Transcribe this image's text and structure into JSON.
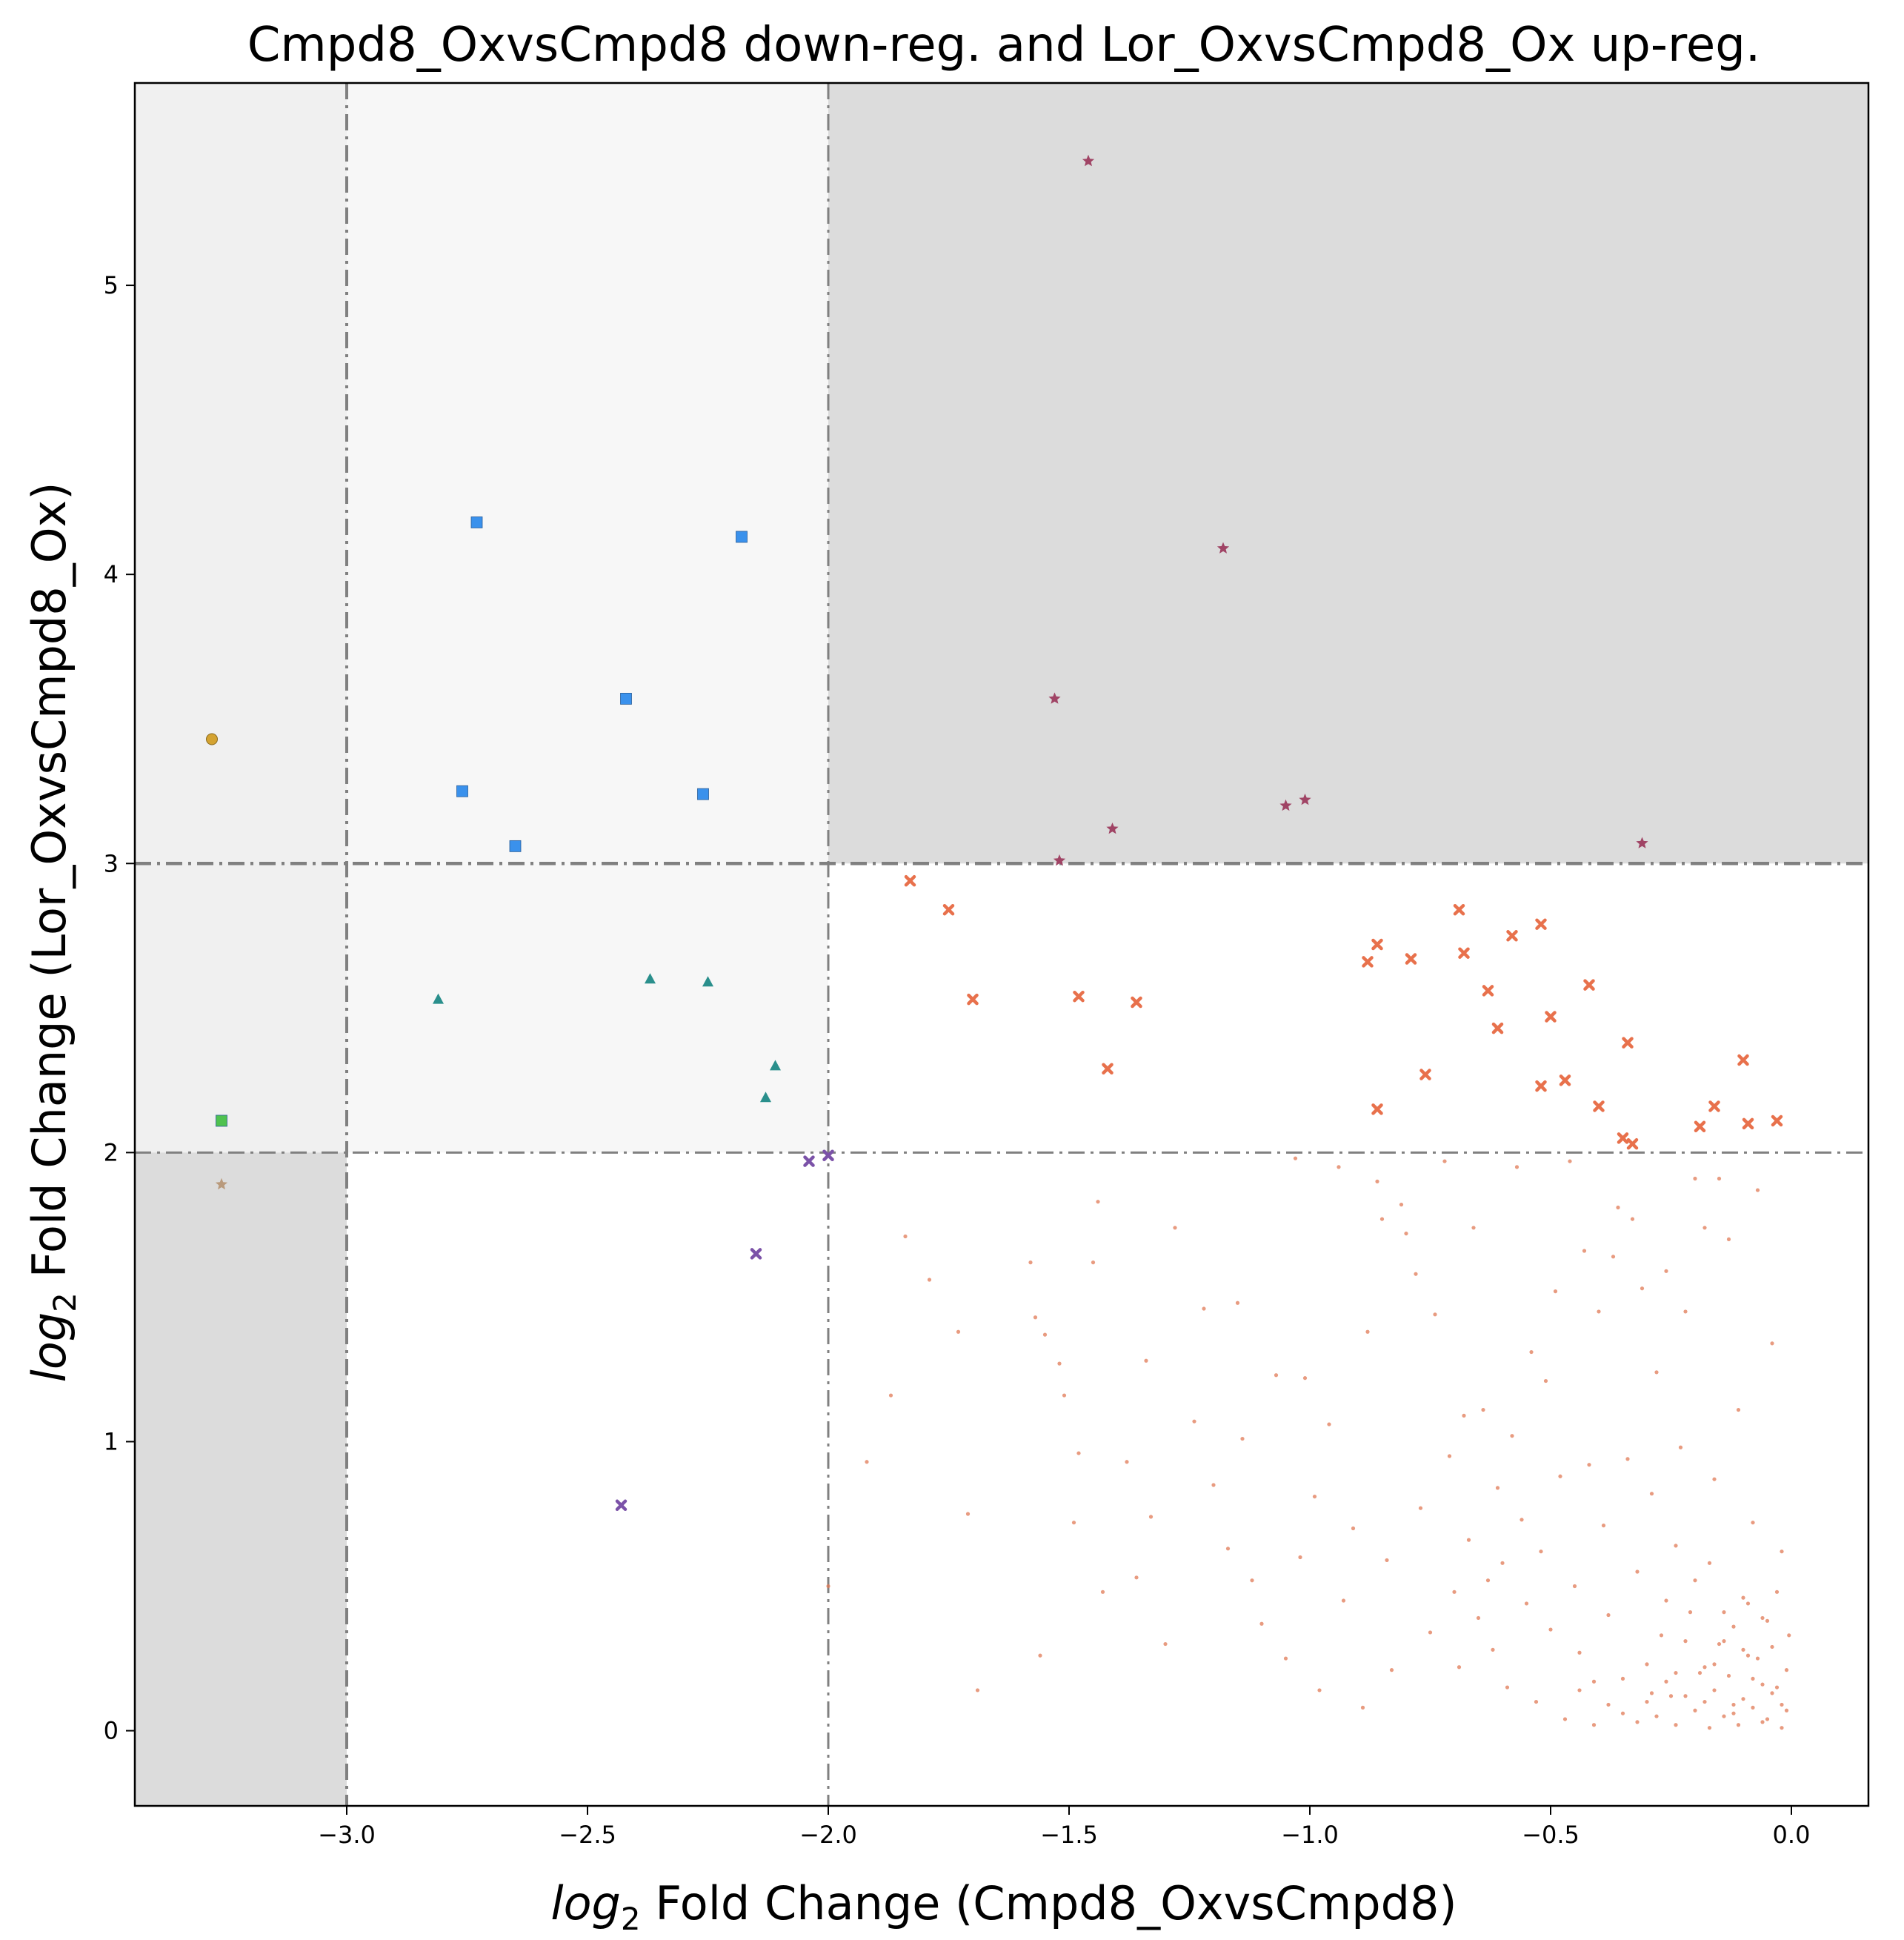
{
  "chart_data": {
    "type": "scatter",
    "title": "Cmpd8_OxvsCmpd8 down-reg. and Lor_OxvsCmpd8_Ox up-reg.",
    "xlabel_italic": "log",
    "xlabel_sub": "2",
    "xlabel_rest": " Fold Change (Cmpd8_OxvsCmpd8)",
    "ylabel_italic": "log",
    "ylabel_sub": "2",
    "ylabel_rest": " Fold Change (Lor_OxvsCmpd8_Ox)",
    "xlim": [
      -3.44,
      0.16
    ],
    "ylim": [
      -0.26,
      5.7
    ],
    "x_ticks": [
      -3.0,
      -2.5,
      -2.0,
      -1.5,
      -1.0,
      -0.5,
      0.0
    ],
    "x_tick_labels": [
      "−3.0",
      "−2.5",
      "−2.0",
      "−1.5",
      "−1.0",
      "−0.5",
      "0.0"
    ],
    "y_ticks": [
      0,
      1,
      2,
      3,
      4,
      5
    ],
    "y_tick_labels": [
      "0",
      "1",
      "2",
      "3",
      "4",
      "5"
    ],
    "grid": false,
    "legend": "none",
    "thresholds": {
      "x_dashdot": [
        -3.0,
        -2.0
      ],
      "y_dashdot": [
        2.0,
        3.0
      ]
    },
    "shaded_regions": [
      {
        "x": [
          -3.44,
          -3.0
        ],
        "y": [
          2.0,
          5.7
        ],
        "color": "#f0f0f0"
      },
      {
        "x": [
          -3.0,
          -2.0
        ],
        "y": [
          3.0,
          5.7
        ],
        "color": "#f7f7f7"
      },
      {
        "x": [
          -3.0,
          -2.0
        ],
        "y": [
          2.0,
          3.0
        ],
        "color": "#f7f7f7"
      },
      {
        "x": [
          -3.44,
          -3.0
        ],
        "y": [
          -0.26,
          2.0
        ],
        "color": "#dcdcdc"
      },
      {
        "x": [
          -2.0,
          0.16
        ],
        "y": [
          3.0,
          5.7
        ],
        "color": "#dcdcdc"
      }
    ],
    "series": [
      {
        "marker": "circle",
        "color": "#d4a331",
        "points": [
          [
            -3.28,
            3.43
          ]
        ]
      },
      {
        "marker": "square",
        "color": "#4fc24f",
        "points": [
          [
            -3.26,
            2.11
          ]
        ]
      },
      {
        "marker": "star",
        "color": "#b99a7c",
        "points": [
          [
            -3.26,
            1.89
          ]
        ]
      },
      {
        "marker": "square",
        "color": "#3a91ec",
        "points": [
          [
            -2.73,
            4.18
          ],
          [
            -2.18,
            4.13
          ],
          [
            -2.42,
            3.57
          ],
          [
            -2.76,
            3.25
          ],
          [
            -2.26,
            3.24
          ],
          [
            -2.65,
            3.06
          ]
        ]
      },
      {
        "marker": "triangle",
        "color": "#2a8f8c",
        "points": [
          [
            -2.81,
            2.53
          ],
          [
            -2.37,
            2.6
          ],
          [
            -2.25,
            2.59
          ],
          [
            -2.11,
            2.3
          ],
          [
            -2.13,
            2.19
          ]
        ]
      },
      {
        "marker": "x",
        "color": "#7b52a8",
        "points": [
          [
            -2.04,
            1.97
          ],
          [
            -2.0,
            1.99
          ],
          [
            -2.15,
            1.65
          ],
          [
            -2.43,
            0.78
          ]
        ]
      },
      {
        "marker": "star",
        "color": "#a04465",
        "points": [
          [
            -1.46,
            5.43
          ],
          [
            -1.18,
            4.09
          ],
          [
            -1.53,
            3.57
          ],
          [
            -1.05,
            3.2
          ],
          [
            -1.01,
            3.22
          ],
          [
            -1.41,
            3.12
          ],
          [
            -1.52,
            3.01
          ],
          [
            -0.31,
            3.07
          ]
        ]
      },
      {
        "marker": "x",
        "color": "#e8714c",
        "points": [
          [
            -1.83,
            2.94
          ],
          [
            -1.75,
            2.84
          ],
          [
            -1.7,
            2.53
          ],
          [
            -1.48,
            2.54
          ],
          [
            -1.36,
            2.52
          ],
          [
            -1.42,
            2.29
          ],
          [
            -0.88,
            2.66
          ],
          [
            -0.86,
            2.72
          ],
          [
            -0.79,
            2.67
          ],
          [
            -0.86,
            2.15
          ],
          [
            -0.76,
            2.27
          ],
          [
            -0.69,
            2.84
          ],
          [
            -0.68,
            2.69
          ],
          [
            -0.63,
            2.56
          ],
          [
            -0.61,
            2.43
          ],
          [
            -0.58,
            2.75
          ],
          [
            -0.52,
            2.79
          ],
          [
            -0.5,
            2.47
          ],
          [
            -0.52,
            2.23
          ],
          [
            -0.47,
            2.25
          ],
          [
            -0.42,
            2.58
          ],
          [
            -0.4,
            2.16
          ],
          [
            -0.35,
            2.05
          ],
          [
            -0.34,
            2.38
          ],
          [
            -0.33,
            2.03
          ],
          [
            -0.19,
            2.09
          ],
          [
            -0.16,
            2.16
          ],
          [
            -0.1,
            2.32
          ],
          [
            -0.09,
            2.1
          ],
          [
            -0.03,
            2.11
          ]
        ]
      },
      {
        "marker": "dot",
        "color": "#e07a55",
        "points": [
          [
            -1.84,
            1.71
          ],
          [
            -1.79,
            1.56
          ],
          [
            -1.87,
            1.16
          ],
          [
            -1.92,
            0.93
          ],
          [
            -1.73,
            1.38
          ],
          [
            -1.71,
            0.75
          ],
          [
            -1.69,
            0.14
          ],
          [
            -2.0,
            0.5
          ],
          [
            -1.58,
            1.62
          ],
          [
            -1.57,
            1.43
          ],
          [
            -1.55,
            1.37
          ],
          [
            -1.52,
            1.27
          ],
          [
            -1.51,
            1.16
          ],
          [
            -1.48,
            0.96
          ],
          [
            -1.49,
            0.72
          ],
          [
            -1.45,
            1.62
          ],
          [
            -1.44,
            1.83
          ],
          [
            -1.43,
            0.48
          ],
          [
            -1.56,
            0.26
          ],
          [
            -1.38,
            0.93
          ],
          [
            -1.36,
            0.53
          ],
          [
            -1.34,
            1.28
          ],
          [
            -1.33,
            0.74
          ],
          [
            -1.3,
            0.3
          ],
          [
            -1.28,
            1.74
          ],
          [
            -1.24,
            1.07
          ],
          [
            -1.22,
            1.46
          ],
          [
            -1.2,
            0.85
          ],
          [
            -1.17,
            0.63
          ],
          [
            -1.15,
            1.48
          ],
          [
            -1.14,
            1.01
          ],
          [
            -1.12,
            0.52
          ],
          [
            -1.1,
            0.37
          ],
          [
            -1.07,
            1.23
          ],
          [
            -1.05,
            0.25
          ],
          [
            -1.03,
            1.98
          ],
          [
            -1.02,
            0.6
          ],
          [
            -1.01,
            1.22
          ],
          [
            -0.99,
            0.81
          ],
          [
            -0.98,
            0.14
          ],
          [
            -0.96,
            1.06
          ],
          [
            -0.94,
            1.95
          ],
          [
            -0.93,
            0.45
          ],
          [
            -0.91,
            0.7
          ],
          [
            -0.89,
            0.08
          ],
          [
            -0.88,
            1.38
          ],
          [
            -0.86,
            1.9
          ],
          [
            -0.85,
            1.77
          ],
          [
            -0.84,
            0.59
          ],
          [
            -0.83,
            0.21
          ],
          [
            -0.81,
            1.82
          ],
          [
            -0.8,
            1.72
          ],
          [
            -0.78,
            1.58
          ],
          [
            -0.77,
            0.77
          ],
          [
            -0.75,
            0.34
          ],
          [
            -0.74,
            1.44
          ],
          [
            -0.72,
            1.97
          ],
          [
            -0.71,
            0.95
          ],
          [
            -0.7,
            0.48
          ],
          [
            -0.69,
            0.22
          ],
          [
            -0.68,
            1.09
          ],
          [
            -0.67,
            0.66
          ],
          [
            -0.66,
            1.74
          ],
          [
            -0.65,
            0.39
          ],
          [
            -0.64,
            1.11
          ],
          [
            -0.63,
            0.52
          ],
          [
            -0.62,
            0.28
          ],
          [
            -0.61,
            0.84
          ],
          [
            -0.6,
            0.58
          ],
          [
            -0.59,
            0.15
          ],
          [
            -0.58,
            1.02
          ],
          [
            -0.57,
            1.95
          ],
          [
            -0.56,
            0.73
          ],
          [
            -0.55,
            0.44
          ],
          [
            -0.54,
            1.31
          ],
          [
            -0.53,
            0.1
          ],
          [
            -0.52,
            0.62
          ],
          [
            -0.51,
            1.21
          ],
          [
            -0.5,
            0.35
          ],
          [
            -0.49,
            1.52
          ],
          [
            -0.48,
            0.88
          ],
          [
            -0.47,
            0.04
          ],
          [
            -0.46,
            1.97
          ],
          [
            -0.45,
            0.5
          ],
          [
            -0.44,
            0.27
          ],
          [
            -0.43,
            1.66
          ],
          [
            -0.42,
            0.92
          ],
          [
            -0.41,
            0.17
          ],
          [
            -0.4,
            1.45
          ],
          [
            -0.39,
            0.71
          ],
          [
            -0.38,
            0.4
          ],
          [
            -0.37,
            1.64
          ],
          [
            -0.36,
            1.81
          ],
          [
            -0.35,
            0.06
          ],
          [
            -0.34,
            0.94
          ],
          [
            -0.33,
            1.77
          ],
          [
            -0.32,
            0.55
          ],
          [
            -0.31,
            1.53
          ],
          [
            -0.3,
            0.23
          ],
          [
            -0.29,
            0.82
          ],
          [
            -0.28,
            1.24
          ],
          [
            -0.27,
            0.33
          ],
          [
            -0.26,
            1.59
          ],
          [
            -0.25,
            0.12
          ],
          [
            -0.24,
            0.64
          ],
          [
            -0.23,
            0.98
          ],
          [
            -0.22,
            1.45
          ],
          [
            -0.21,
            0.41
          ],
          [
            -0.2,
            1.91
          ],
          [
            -0.19,
            0.2
          ],
          [
            -0.18,
            1.74
          ],
          [
            -0.17,
            0.58
          ],
          [
            -0.16,
            0.87
          ],
          [
            -0.15,
            1.91
          ],
          [
            -0.14,
            0.31
          ],
          [
            -0.13,
            1.7
          ],
          [
            -0.12,
            0.09
          ],
          [
            -0.11,
            1.11
          ],
          [
            -0.1,
            0.46
          ],
          [
            -0.09,
            0.26
          ],
          [
            -0.08,
            0.72
          ],
          [
            -0.07,
            1.87
          ],
          [
            -0.06,
            0.03
          ],
          [
            -0.05,
            0.38
          ],
          [
            -0.04,
            1.34
          ],
          [
            -0.03,
            0.15
          ],
          [
            -0.02,
            0.62
          ],
          [
            -0.01,
            0.07
          ],
          [
            -0.3,
            0.1
          ],
          [
            -0.28,
            0.05
          ],
          [
            -0.26,
            0.17
          ],
          [
            -0.24,
            0.02
          ],
          [
            -0.22,
            0.12
          ],
          [
            -0.2,
            0.07
          ],
          [
            -0.18,
            0.22
          ],
          [
            -0.17,
            0.01
          ],
          [
            -0.16,
            0.14
          ],
          [
            -0.15,
            0.3
          ],
          [
            -0.14,
            0.05
          ],
          [
            -0.13,
            0.19
          ],
          [
            -0.12,
            0.36
          ],
          [
            -0.11,
            0.02
          ],
          [
            -0.1,
            0.11
          ],
          [
            -0.09,
            0.44
          ],
          [
            -0.08,
            0.08
          ],
          [
            -0.07,
            0.25
          ],
          [
            -0.06,
            0.16
          ],
          [
            -0.05,
            0.04
          ],
          [
            -0.04,
            0.29
          ],
          [
            -0.03,
            0.48
          ],
          [
            -0.02,
            0.09
          ],
          [
            -0.01,
            0.21
          ],
          [
            -0.005,
            0.33
          ],
          [
            -0.02,
            0.01
          ],
          [
            -0.04,
            0.13
          ],
          [
            -0.06,
            0.39
          ],
          [
            -0.08,
            0.18
          ],
          [
            -0.1,
            0.28
          ],
          [
            -0.12,
            0.06
          ],
          [
            -0.14,
            0.41
          ],
          [
            -0.16,
            0.23
          ],
          [
            -0.18,
            0.1
          ],
          [
            -0.2,
            0.52
          ],
          [
            -0.22,
            0.31
          ],
          [
            -0.24,
            0.2
          ],
          [
            -0.26,
            0.45
          ],
          [
            -0.29,
            0.13
          ],
          [
            -0.32,
            0.03
          ],
          [
            -0.35,
            0.18
          ],
          [
            -0.38,
            0.09
          ],
          [
            -0.41,
            0.02
          ],
          [
            -0.44,
            0.14
          ]
        ]
      }
    ]
  }
}
